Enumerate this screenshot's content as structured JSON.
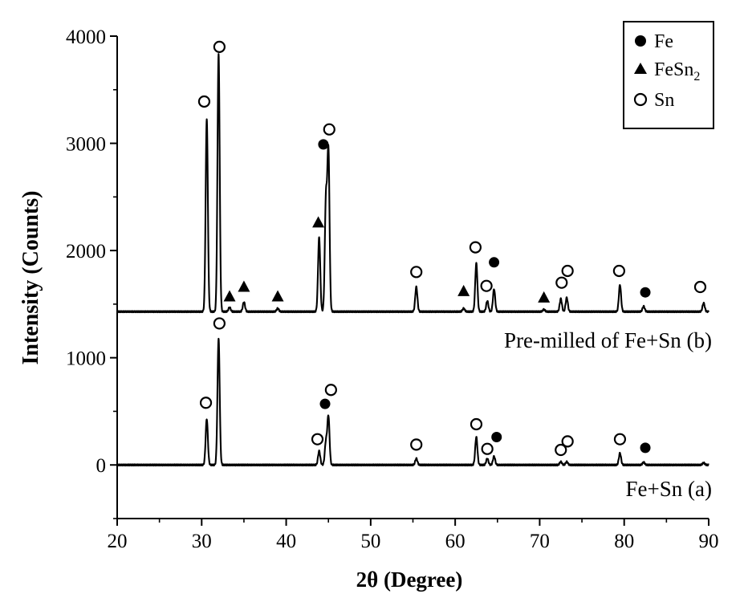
{
  "chart_data": {
    "type": "line",
    "xlabel": "2θ (Degree)",
    "ylabel": "Intensity (Counts)",
    "xlim": [
      20,
      90
    ],
    "ylim": [
      -500,
      4000
    ],
    "x_ticks": [
      20,
      30,
      40,
      50,
      60,
      70,
      80,
      90
    ],
    "y_ticks": [
      0,
      1000,
      2000,
      3000,
      4000
    ],
    "grid": false,
    "legend_position": "top-right",
    "legend": [
      {
        "marker": "filled-circle",
        "label": "Fe"
      },
      {
        "marker": "filled-triangle",
        "label": "FeSn",
        "label_sub": "2"
      },
      {
        "marker": "open-circle",
        "label": "Sn"
      }
    ],
    "series": [
      {
        "name": "Fe+Sn (a)",
        "baseline": 0,
        "peaks": [
          {
            "x": 30.6,
            "y": 430
          },
          {
            "x": 32.0,
            "y": 1180
          },
          {
            "x": 43.9,
            "y": 130
          },
          {
            "x": 44.7,
            "y": 210
          },
          {
            "x": 45.0,
            "y": 450
          },
          {
            "x": 55.4,
            "y": 60
          },
          {
            "x": 62.5,
            "y": 260
          },
          {
            "x": 63.8,
            "y": 60
          },
          {
            "x": 64.6,
            "y": 80
          },
          {
            "x": 72.5,
            "y": 30
          },
          {
            "x": 73.2,
            "y": 30
          },
          {
            "x": 79.5,
            "y": 110
          },
          {
            "x": 82.3,
            "y": 25
          },
          {
            "x": 89.4,
            "y": 20
          }
        ]
      },
      {
        "name": "Pre-milled of Fe+Sn (b)",
        "baseline": 1430,
        "peaks": [
          {
            "x": 30.6,
            "y": 3230
          },
          {
            "x": 32.0,
            "y": 3830
          },
          {
            "x": 33.3,
            "y": 1470
          },
          {
            "x": 35.0,
            "y": 1520
          },
          {
            "x": 39.0,
            "y": 1460
          },
          {
            "x": 43.9,
            "y": 2120
          },
          {
            "x": 44.7,
            "y": 2450
          },
          {
            "x": 45.0,
            "y": 2910
          },
          {
            "x": 55.4,
            "y": 1660
          },
          {
            "x": 61.0,
            "y": 1460
          },
          {
            "x": 62.5,
            "y": 1880
          },
          {
            "x": 63.8,
            "y": 1530
          },
          {
            "x": 64.6,
            "y": 1640
          },
          {
            "x": 70.5,
            "y": 1450
          },
          {
            "x": 72.5,
            "y": 1550
          },
          {
            "x": 73.2,
            "y": 1560
          },
          {
            "x": 79.5,
            "y": 1680
          },
          {
            "x": 82.3,
            "y": 1480
          },
          {
            "x": 89.4,
            "y": 1510
          }
        ]
      }
    ],
    "annotations": [
      {
        "text": "Pre-milled of Fe+Sn (b)",
        "x": 89.5,
        "y": 1130
      },
      {
        "text": "Fe+Sn (a)",
        "x": 89.5,
        "y": -210
      }
    ],
    "markers": [
      {
        "symbol": "open-circle",
        "x": 30.3,
        "y": 3390
      },
      {
        "symbol": "open-circle",
        "x": 32.1,
        "y": 3900
      },
      {
        "symbol": "filled-triangle",
        "x": 33.3,
        "y": 1570
      },
      {
        "symbol": "filled-triangle",
        "x": 35.0,
        "y": 1660
      },
      {
        "symbol": "filled-triangle",
        "x": 39.0,
        "y": 1570
      },
      {
        "symbol": "filled-triangle",
        "x": 43.8,
        "y": 2260
      },
      {
        "symbol": "filled-circle",
        "x": 44.4,
        "y": 2990
      },
      {
        "symbol": "open-circle",
        "x": 45.1,
        "y": 3130
      },
      {
        "symbol": "open-circle",
        "x": 55.4,
        "y": 1800
      },
      {
        "symbol": "filled-triangle",
        "x": 61.0,
        "y": 1620
      },
      {
        "symbol": "open-circle",
        "x": 62.4,
        "y": 2030
      },
      {
        "symbol": "open-circle",
        "x": 63.7,
        "y": 1670
      },
      {
        "symbol": "filled-circle",
        "x": 64.6,
        "y": 1890
      },
      {
        "symbol": "filled-triangle",
        "x": 70.5,
        "y": 1560
      },
      {
        "symbol": "open-circle",
        "x": 72.6,
        "y": 1700
      },
      {
        "symbol": "open-circle",
        "x": 73.3,
        "y": 1810
      },
      {
        "symbol": "open-circle",
        "x": 79.4,
        "y": 1810
      },
      {
        "symbol": "filled-circle",
        "x": 82.5,
        "y": 1610
      },
      {
        "symbol": "open-circle",
        "x": 89.0,
        "y": 1660
      },
      {
        "symbol": "open-circle",
        "x": 30.5,
        "y": 580
      },
      {
        "symbol": "open-circle",
        "x": 32.1,
        "y": 1320
      },
      {
        "symbol": "open-circle",
        "x": 43.7,
        "y": 240
      },
      {
        "symbol": "filled-circle",
        "x": 44.6,
        "y": 570
      },
      {
        "symbol": "open-circle",
        "x": 45.3,
        "y": 700
      },
      {
        "symbol": "open-circle",
        "x": 55.4,
        "y": 190
      },
      {
        "symbol": "open-circle",
        "x": 62.5,
        "y": 380
      },
      {
        "symbol": "open-circle",
        "x": 63.8,
        "y": 150
      },
      {
        "symbol": "filled-circle",
        "x": 64.9,
        "y": 260
      },
      {
        "symbol": "open-circle",
        "x": 72.5,
        "y": 140
      },
      {
        "symbol": "open-circle",
        "x": 73.3,
        "y": 220
      },
      {
        "symbol": "open-circle",
        "x": 79.5,
        "y": 240
      },
      {
        "symbol": "filled-circle",
        "x": 82.5,
        "y": 160
      }
    ]
  }
}
